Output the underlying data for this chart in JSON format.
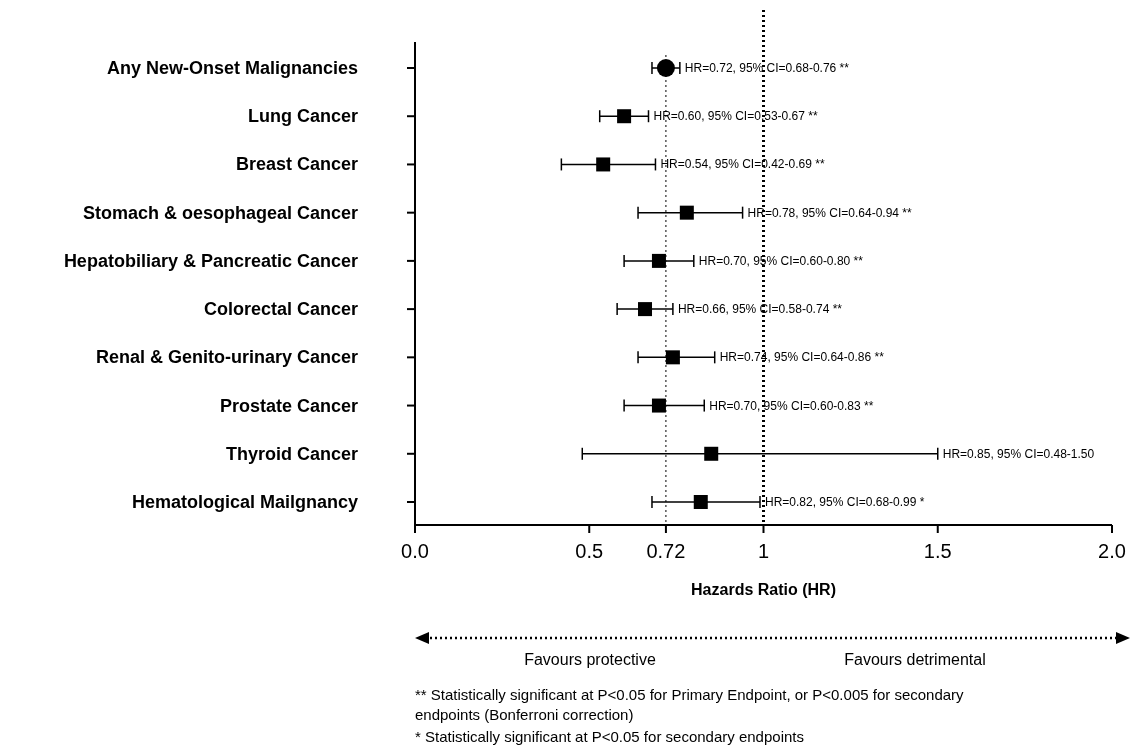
{
  "chart_data": {
    "type": "scatter",
    "orientation": "horizontal",
    "xlabel": "Hazards Ratio (HR)",
    "categories": [
      "Any New-Onset Malignancies",
      "Lung Cancer",
      "Breast Cancer",
      "Stomach & oesophageal Cancer",
      "Hepatobiliary & Pancreatic Cancer",
      "Colorectal Cancer",
      "Renal & Genito-urinary Cancer",
      "Prostate Cancer",
      "Thyroid Cancer",
      "Hematological Mailgnancy"
    ],
    "xlim": [
      0,
      2
    ],
    "xticks": [
      {
        "value": 0,
        "label": "0.0"
      },
      0.5,
      0.72,
      1,
      1.5,
      {
        "value": 2,
        "label": "2.0"
      }
    ],
    "ref_lines": [
      {
        "axis": "x",
        "value": 0.72,
        "line_style": "dotted"
      },
      {
        "axis": "x",
        "value": 1,
        "line_style": "dotted"
      }
    ],
    "series": [
      {
        "marker": "circle",
        "color": "#000000",
        "values": [
          0.72,
          null,
          null,
          null,
          null,
          null,
          null,
          null,
          null,
          null
        ],
        "errors": [
          [
            0.68,
            0.76
          ],
          null,
          null,
          null,
          null,
          null,
          null,
          null,
          null,
          null
        ]
      },
      {
        "marker": "square",
        "color": "#000000",
        "values": [
          null,
          0.6,
          0.54,
          0.78,
          0.7,
          0.66,
          0.74,
          0.7,
          0.85,
          0.82
        ],
        "errors": [
          null,
          [
            0.53,
            0.67
          ],
          [
            0.42,
            0.69
          ],
          [
            0.64,
            0.94
          ],
          [
            0.6,
            0.8
          ],
          [
            0.58,
            0.74
          ],
          [
            0.64,
            0.86
          ],
          [
            0.6,
            0.83
          ],
          [
            0.48,
            1.5
          ],
          [
            0.68,
            0.99
          ]
        ]
      }
    ],
    "annotations": [
      {
        "text": "HR=0.72, 95% CI=0.68-0.76 **",
        "x": 0.76,
        "y": "Any New-Onset Malignancies"
      },
      {
        "text": "HR=0.60, 95% CI=0.53-0.67 **",
        "x": 0.67,
        "y": "Lung Cancer"
      },
      {
        "text": "HR=0.54, 95% CI=0.42-0.69 **",
        "x": 0.69,
        "y": "Breast Cancer"
      },
      {
        "text": "HR=0.78, 95% CI=0.64-0.94 **",
        "x": 0.94,
        "y": "Stomach & oesophageal Cancer"
      },
      {
        "text": "HR=0.70, 95% CI=0.60-0.80 **",
        "x": 0.8,
        "y": "Hepatobiliary & Pancreatic Cancer"
      },
      {
        "text": "HR=0.66, 95% CI=0.58-0.74 **",
        "x": 0.74,
        "y": "Colorectal Cancer"
      },
      {
        "text": "HR=0.74, 95% CI=0.64-0.86 **",
        "x": 0.86,
        "y": "Renal & Genito-urinary Cancer"
      },
      {
        "text": "HR=0.70, 95% CI=0.60-0.83 **",
        "x": 0.83,
        "y": "Prostate Cancer"
      },
      {
        "text": "HR=0.85, 95% CI=0.48-1.50",
        "x": 1.5,
        "y": "Thyroid Cancer"
      },
      {
        "text": "HR=0.82, 95% CI=0.68-0.99 *",
        "x": 0.99,
        "y": "Hematological Mailgnancy"
      },
      "Favours protective",
      "Favours detrimental",
      "** Statistically significant at P<0.05 for Primary Endpoint, or P<0.005 for secondary endpoints (Bonferroni correction)",
      "* Statistically significant at P<0.05 for secondary endpoints"
    ]
  }
}
